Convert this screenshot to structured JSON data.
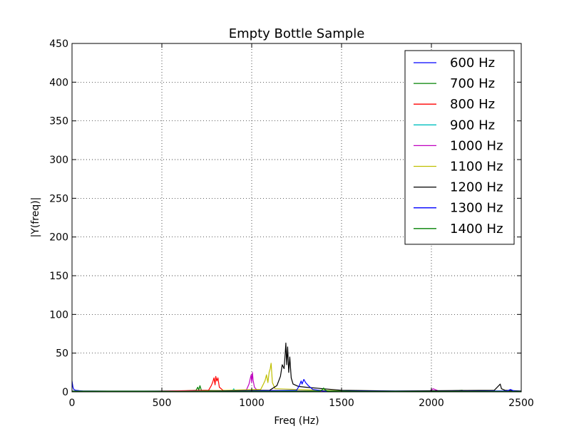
{
  "chart_data": {
    "type": "line",
    "title": "Empty Bottle Sample",
    "xlabel": "Freq (Hz)",
    "ylabel": "|Y(freq)|",
    "xlim": [
      0,
      2500
    ],
    "ylim": [
      0,
      450
    ],
    "xticks": [
      0,
      500,
      1000,
      1500,
      2000,
      2500
    ],
    "yticks": [
      0,
      50,
      100,
      150,
      200,
      250,
      300,
      350,
      400,
      450
    ],
    "grid": true,
    "legend_position": "top-right",
    "series": [
      {
        "name": "600 Hz",
        "color": "#0000ff",
        "x": [
          0,
          5,
          10,
          20,
          40,
          60,
          100,
          200,
          400,
          600,
          610,
          800,
          1000,
          1200,
          1400,
          1600,
          1800,
          2000,
          2200,
          2400,
          2500
        ],
        "y": [
          14,
          6,
          3,
          2,
          1.5,
          1.2,
          1,
          0.8,
          0.8,
          1.2,
          0.8,
          0.6,
          0.6,
          0.6,
          0.6,
          0.6,
          0.6,
          0.6,
          0.6,
          0.6,
          0.5
        ]
      },
      {
        "name": "700 Hz",
        "color": "#008000",
        "x": [
          0,
          200,
          400,
          600,
          690,
          700,
          705,
          712,
          720,
          900,
          1200,
          1500,
          1800,
          2100,
          2170,
          2200,
          2400,
          2500
        ],
        "y": [
          1,
          1,
          1,
          1,
          2,
          6,
          2,
          8,
          2,
          1,
          1,
          1,
          1,
          1,
          2,
          1,
          1,
          0.5
        ]
      },
      {
        "name": "800 Hz",
        "color": "#ff0000",
        "x": [
          0,
          400,
          760,
          775,
          782,
          790,
          796,
          800,
          806,
          812,
          820,
          840,
          900,
          1200,
          1600,
          2000,
          2500
        ],
        "y": [
          0.5,
          0.5,
          2,
          8,
          12,
          18,
          9,
          20,
          14,
          18,
          6,
          2,
          0.5,
          0.5,
          0.5,
          0.5,
          0.5
        ]
      },
      {
        "name": "900 Hz",
        "color": "#00bfbf",
        "x": [
          0,
          400,
          800,
          880,
          895,
          900,
          905,
          920,
          1200,
          1600,
          2000,
          2500
        ],
        "y": [
          0.5,
          0.5,
          0.5,
          1,
          2,
          4,
          2,
          1,
          0.5,
          0.5,
          0.5,
          0.5
        ]
      },
      {
        "name": "1000 Hz",
        "color": "#bf00bf",
        "x": [
          0,
          500,
          970,
          985,
          993,
          997,
          1000,
          1004,
          1008,
          1015,
          1030,
          1500,
          1990,
          2010,
          2020,
          2040,
          2500
        ],
        "y": [
          0.5,
          0.5,
          2,
          10,
          18,
          22,
          12,
          25,
          15,
          6,
          2,
          0.5,
          1,
          4,
          3,
          1,
          0.5
        ]
      },
      {
        "name": "1100 Hz",
        "color": "#bfbf00",
        "x": [
          0,
          600,
          1050,
          1065,
          1075,
          1082,
          1090,
          1097,
          1103,
          1108,
          1115,
          1130,
          1600,
          2500
        ],
        "y": [
          0.5,
          0.5,
          3,
          10,
          15,
          22,
          12,
          25,
          30,
          37,
          12,
          4,
          0.5,
          0.5
        ]
      },
      {
        "name": "1200 Hz",
        "color": "#000000",
        "x": [
          0,
          600,
          1100,
          1140,
          1160,
          1170,
          1180,
          1186,
          1190,
          1195,
          1200,
          1206,
          1212,
          1220,
          1230,
          1260,
          1300,
          1400,
          1500,
          1800,
          2350,
          2375,
          2383,
          2390,
          2410,
          2500
        ],
        "y": [
          0.5,
          0.5,
          2,
          8,
          20,
          35,
          30,
          48,
          63,
          35,
          58,
          25,
          45,
          18,
          10,
          7,
          6,
          4,
          2,
          1,
          2,
          8,
          10,
          4,
          2,
          1
        ]
      },
      {
        "name": "1300 Hz",
        "color": "#0000ff",
        "x": [
          0,
          800,
          1250,
          1265,
          1275,
          1280,
          1290,
          1300,
          1315,
          1340,
          1400,
          2000,
          2420,
          2440,
          2460,
          2500
        ],
        "y": [
          0.5,
          0.5,
          2,
          8,
          14,
          10,
          16,
          12,
          8,
          3,
          1,
          0.5,
          1,
          3,
          1,
          0.5
        ]
      },
      {
        "name": "1400 Hz",
        "color": "#008000",
        "x": [
          0,
          800,
          1380,
          1395,
          1400,
          1405,
          1420,
          1600,
          2000,
          2500
        ],
        "y": [
          0.5,
          0.5,
          1,
          3,
          5,
          3,
          1,
          0.5,
          0.5,
          0.5
        ]
      }
    ]
  }
}
